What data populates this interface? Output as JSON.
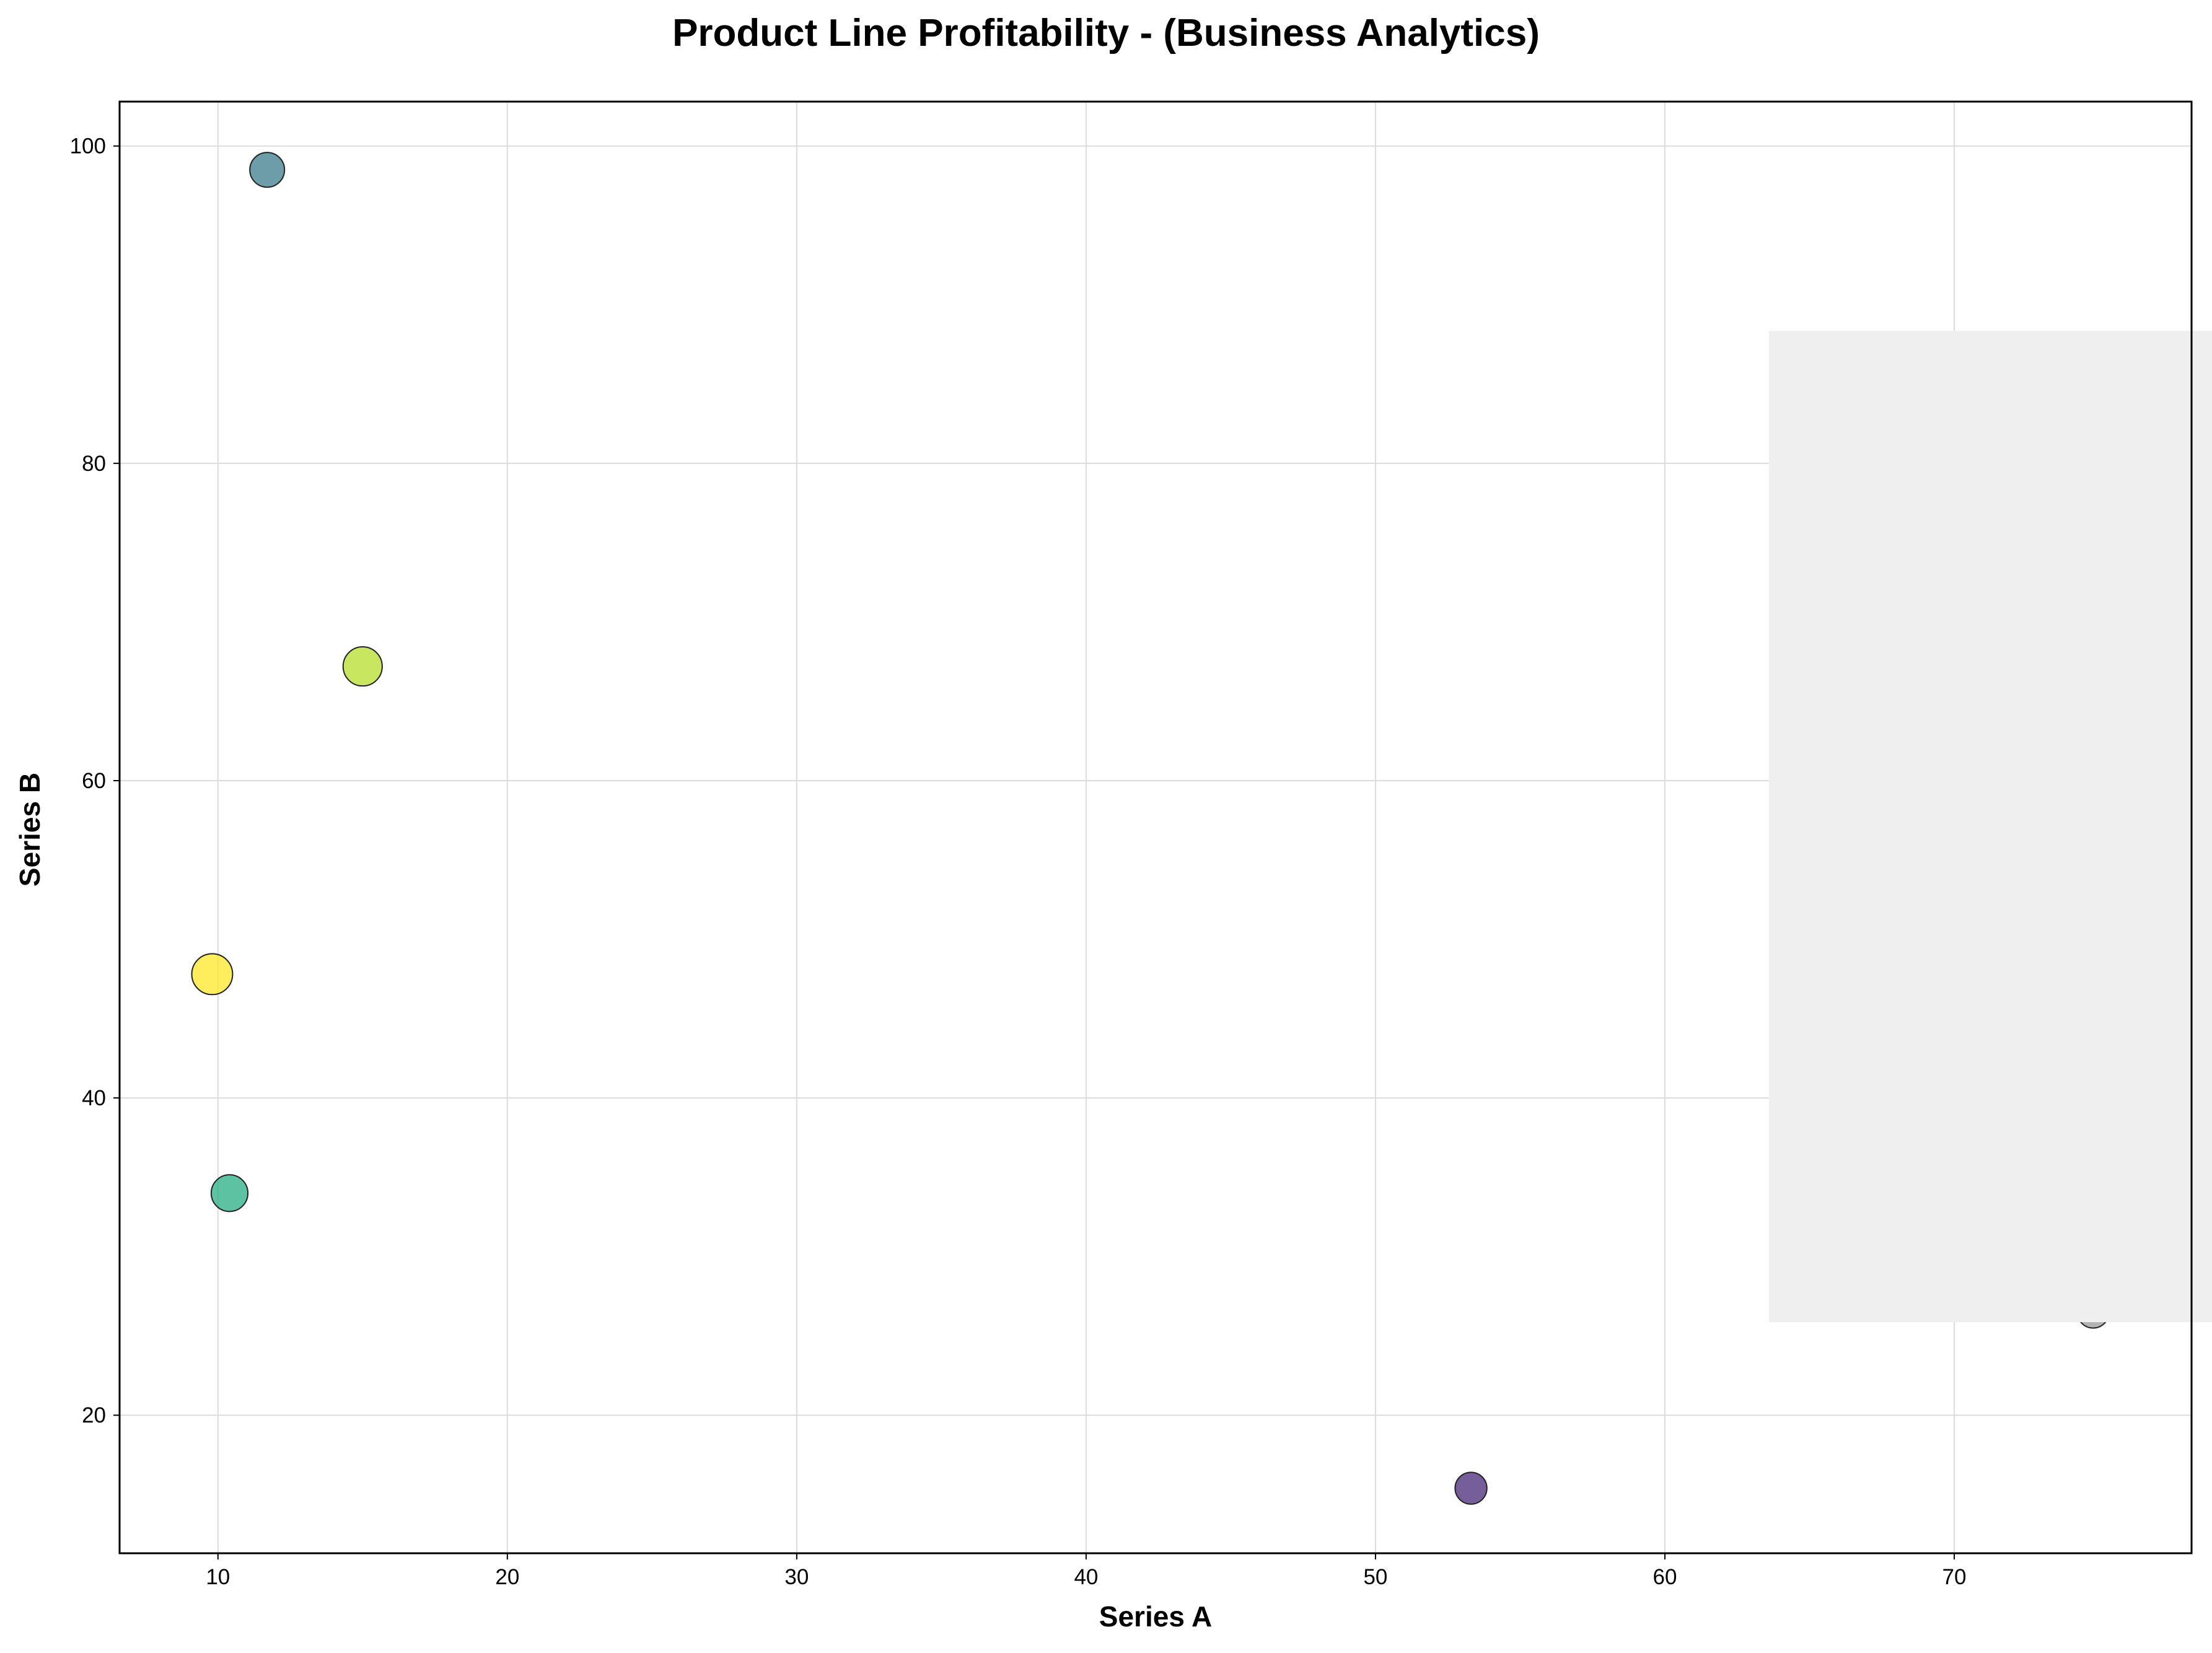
{
  "chart_data": {
    "type": "scatter",
    "title": "Product Line Profitability - (Business Analytics)",
    "xlabel": "Series A",
    "ylabel": "Series B",
    "xlim": [
      6.6,
      78.2
    ],
    "ylim": [
      11.3,
      102.8
    ],
    "xticks": [
      10,
      20,
      30,
      40,
      50,
      60,
      70
    ],
    "yticks": [
      20,
      40,
      60,
      80,
      100
    ],
    "grid": true,
    "points": [
      {
        "x": 11.7,
        "y": 98.5,
        "size": 1.0,
        "color": "#3b7c8c"
      },
      {
        "x": 15.0,
        "y": 67.2,
        "size": 1.35,
        "color": "#b5de2b"
      },
      {
        "x": 9.8,
        "y": 47.8,
        "size": 1.5,
        "color": "#fde725"
      },
      {
        "x": 10.4,
        "y": 34.0,
        "size": 1.15,
        "color": "#27ad81"
      },
      {
        "x": 53.3,
        "y": 15.4,
        "size": 0.8,
        "color": "#482878"
      },
      {
        "x": 74.8,
        "y": 26.5,
        "size": 0.8,
        "color": "#9a9a9a"
      }
    ]
  }
}
